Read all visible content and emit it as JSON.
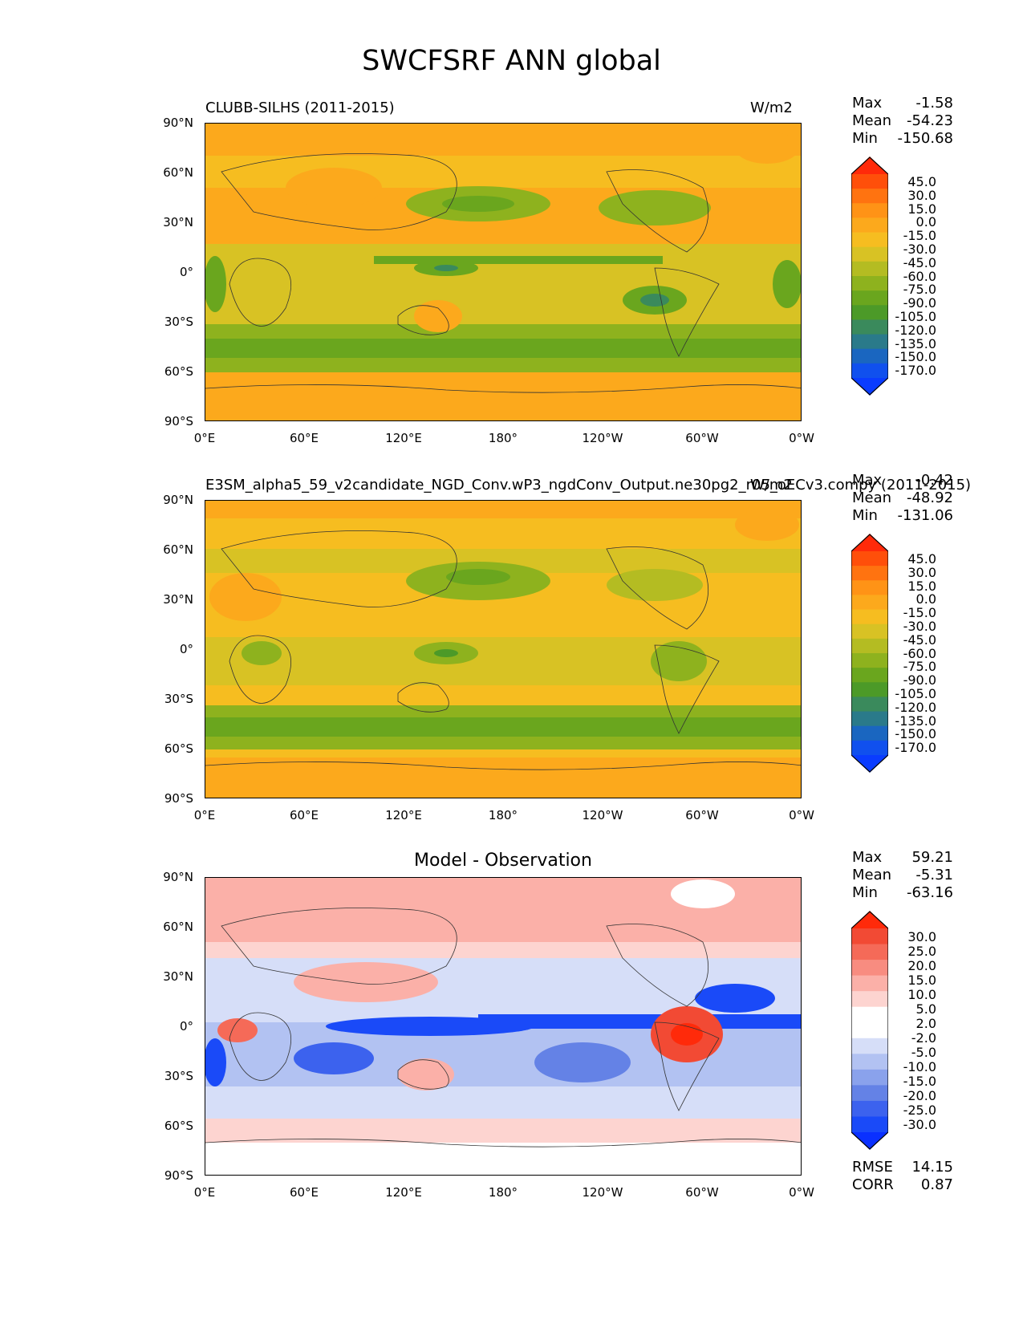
{
  "figure": {
    "title": "SWCFSRF ANN global"
  },
  "panels": [
    {
      "title_left": "CLUBB-SILHS (2011-2015)",
      "title_right": "W/m2",
      "stats": {
        "max_label": "Max",
        "max": "-1.58",
        "mean_label": "Mean",
        "mean": "-54.23",
        "min_label": "Min",
        "min": "-150.68"
      },
      "colorbar_labels": [
        "45.0",
        "30.0",
        "15.0",
        "0.0",
        "-15.0",
        "-30.0",
        "-45.0",
        "-60.0",
        "-75.0",
        "-90.0",
        "-105.0",
        "-120.0",
        "-135.0",
        "-150.0",
        "-170.0"
      ]
    },
    {
      "title_left": "E3SM_alpha5_59_v2candidate_NGD_Conv.wP3_ngdConv_Output.ne30pg2_r05_oECv3.compy (2011-2015)",
      "title_right": "W/m2",
      "stats": {
        "max_label": "Max",
        "max": "-0.42",
        "mean_label": "Mean",
        "mean": "-48.92",
        "min_label": "Min",
        "min": "-131.06"
      },
      "colorbar_labels": [
        "45.0",
        "30.0",
        "15.0",
        "0.0",
        "-15.0",
        "-30.0",
        "-45.0",
        "-60.0",
        "-75.0",
        "-90.0",
        "-105.0",
        "-120.0",
        "-135.0",
        "-150.0",
        "-170.0"
      ]
    },
    {
      "title_center": "Model - Observation",
      "stats": {
        "max_label": "Max",
        "max": "59.21",
        "mean_label": "Mean",
        "mean": "-5.31",
        "min_label": "Min",
        "min": "-63.16"
      },
      "colorbar_labels": [
        "30.0",
        "25.0",
        "20.0",
        "15.0",
        "10.0",
        "5.0",
        "2.0",
        "-2.0",
        "-5.0",
        "-10.0",
        "-15.0",
        "-20.0",
        "-25.0",
        "-30.0"
      ],
      "metrics": {
        "rmse_label": "RMSE",
        "rmse": "14.15",
        "corr_label": "CORR",
        "corr": "0.87"
      }
    }
  ],
  "axes": {
    "x_ticks": [
      "0°E",
      "60°E",
      "120°E",
      "180°",
      "120°W",
      "60°W",
      "0°W"
    ],
    "y_ticks": [
      "90°N",
      "60°N",
      "30°N",
      "0°",
      "30°S",
      "60°S",
      "90°S"
    ]
  },
  "colors": {
    "model_scale": [
      "#ff2a0a",
      "#ff4f0a",
      "#ff7310",
      "#ff9316",
      "#fca91c",
      "#f6bd20",
      "#d8c224",
      "#b4bc22",
      "#8eb21e",
      "#6aa61e",
      "#4c9a28",
      "#3a8a5c",
      "#2a7a8a",
      "#1a66c0",
      "#1050ee",
      "#0a3cff"
    ],
    "diff_scale": [
      "#ff2a0a",
      "#f24a34",
      "#f56a58",
      "#f88c80",
      "#fbb0a8",
      "#fdd4d0",
      "#ffffff",
      "#ffffff",
      "#d6def8",
      "#b2c2f2",
      "#8aa2ec",
      "#6482e6",
      "#3c62ee",
      "#1a4af8",
      "#0a30ff"
    ]
  },
  "chart_data": [
    {
      "type": "heatmap",
      "title": "CLUBB-SILHS (2011-2015)",
      "units": "W/m2",
      "x_range": [
        0,
        360
      ],
      "y_range": [
        -90,
        90
      ],
      "levels": [
        -170,
        -150,
        -135,
        -120,
        -105,
        -90,
        -75,
        -60,
        -45,
        -30,
        -15,
        0,
        15,
        30,
        45
      ],
      "max": -1.58,
      "mean": -54.23,
      "min": -150.68
    },
    {
      "type": "heatmap",
      "title": "E3SM_alpha5_59_v2candidate_NGD_Conv.wP3_ngdConv_Output.ne30pg2_r05_oECv3.compy (2011-2015)",
      "units": "W/m2",
      "x_range": [
        0,
        360
      ],
      "y_range": [
        -90,
        90
      ],
      "levels": [
        -170,
        -150,
        -135,
        -120,
        -105,
        -90,
        -75,
        -60,
        -45,
        -30,
        -15,
        0,
        15,
        30,
        45
      ],
      "max": -0.42,
      "mean": -48.92,
      "min": -131.06
    },
    {
      "type": "heatmap",
      "title": "Model - Observation",
      "x_range": [
        0,
        360
      ],
      "y_range": [
        -90,
        90
      ],
      "levels": [
        -30,
        -25,
        -20,
        -15,
        -10,
        -5,
        -2,
        2,
        5,
        10,
        15,
        20,
        25,
        30
      ],
      "max": 59.21,
      "mean": -5.31,
      "min": -63.16,
      "rmse": 14.15,
      "corr": 0.87
    }
  ]
}
